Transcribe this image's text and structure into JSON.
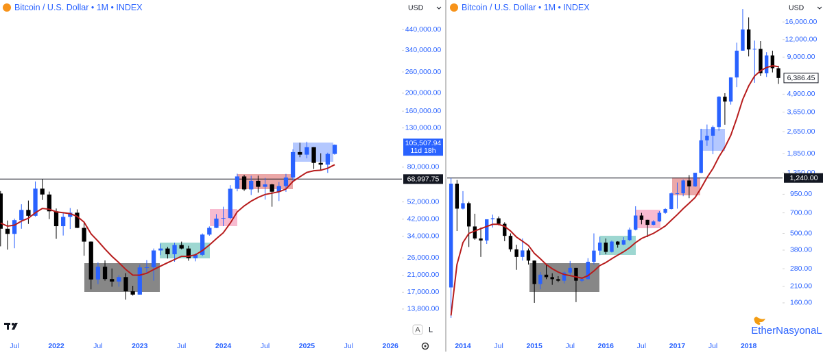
{
  "chart_data": [
    {
      "type": "candlestick",
      "title": "Bitcoin / U.S. Dollar • 1M • INDEX",
      "currency": "USD",
      "log_scale": true,
      "up_color": "#2962ff",
      "down_color": "#000000",
      "categories": [
        null,
        null,
        "Jul",
        null,
        null,
        null,
        null,
        null,
        "2022",
        null,
        null,
        null,
        null,
        null,
        "Jul",
        null,
        null,
        null,
        null,
        null,
        "2023",
        null,
        null,
        null,
        null,
        null,
        "Jul",
        null,
        null,
        null,
        null,
        null,
        "2024",
        null,
        null,
        null,
        null,
        null,
        "Jul",
        null,
        null,
        null,
        null,
        null,
        "2025",
        null,
        null,
        null,
        null,
        null,
        "Jul",
        null,
        null,
        null,
        null,
        null,
        "2026"
      ],
      "open": [
        57700,
        37300,
        35000,
        41500,
        47100,
        43800,
        61300,
        57000,
        46300,
        38500,
        43200,
        45500,
        37700,
        31800,
        19900,
        23300,
        20000,
        19400,
        20500,
        17200,
        16500,
        23100,
        23150,
        28500,
        29200,
        27200,
        30500,
        29200,
        25900,
        27000,
        34700,
        37700,
        42300,
        42600,
        61200,
        71300,
        60700,
        67500,
        62700,
        64600,
        59000,
        63300,
        70300,
        96400,
        93400,
        102400,
        84300,
        82500,
        94200,
        null,
        null,
        null,
        null,
        null,
        null,
        null,
        null
      ],
      "high": [
        59500,
        41300,
        42300,
        50500,
        52900,
        67000,
        69000,
        59100,
        47900,
        45800,
        48200,
        47400,
        40000,
        31900,
        24600,
        25200,
        22800,
        21000,
        21500,
        18400,
        23900,
        25300,
        29200,
        31000,
        29800,
        31400,
        31800,
        30200,
        27500,
        35200,
        38400,
        44700,
        49000,
        64000,
        73800,
        72800,
        71900,
        72000,
        70000,
        65100,
        66500,
        73600,
        99800,
        108300,
        109600,
        102500,
        95000,
        95700,
        106000,
        null,
        null,
        null,
        null,
        null,
        null,
        null,
        null
      ],
      "low": [
        30000,
        28800,
        29300,
        37300,
        39600,
        43300,
        53300,
        42000,
        32900,
        34300,
        37200,
        37600,
        26700,
        17600,
        18800,
        19600,
        18200,
        18200,
        15500,
        16300,
        16500,
        21400,
        19600,
        26900,
        25800,
        24800,
        28900,
        25100,
        24900,
        26600,
        34200,
        37600,
        38500,
        41900,
        59300,
        59600,
        56600,
        58400,
        53500,
        49000,
        52600,
        58900,
        66800,
        90500,
        89200,
        78200,
        76600,
        74500,
        93300,
        null,
        null,
        null,
        null,
        null,
        null,
        null,
        null
      ],
      "close": [
        37300,
        35000,
        41500,
        47100,
        43800,
        61300,
        57000,
        46300,
        38500,
        43200,
        45500,
        37700,
        31800,
        19900,
        23300,
        20000,
        19400,
        20500,
        17200,
        16500,
        23100,
        23150,
        28500,
        29200,
        27200,
        30500,
        29200,
        25900,
        27000,
        34700,
        37700,
        42300,
        42600,
        61200,
        71300,
        60700,
        67500,
        62700,
        64600,
        59000,
        63300,
        70300,
        96400,
        93400,
        102400,
        84300,
        82500,
        94200,
        105507.94,
        null,
        null,
        null,
        null,
        null,
        null,
        null,
        null
      ],
      "ma": {
        "color": "#b71c1c",
        "values": [
          40000,
          38500,
          39000,
          41000,
          42500,
          45500,
          48000,
          47500,
          46000,
          45500,
          45000,
          43500,
          40500,
          35000,
          32000,
          29000,
          26500,
          24500,
          22500,
          21000,
          21000,
          21500,
          22500,
          23500,
          24500,
          25500,
          26500,
          26500,
          27000,
          28500,
          30500,
          33000,
          35500,
          40000,
          46000,
          49500,
          52500,
          55000,
          57000,
          58000,
          59000,
          61000,
          67000,
          71000,
          75000,
          76500,
          77000,
          79000,
          82500,
          null,
          null,
          null,
          null,
          null,
          null,
          null,
          null
        ]
      },
      "ylim": [
        10600,
        634000
      ],
      "yticks": [
        {
          "value": 440000,
          "label": "440,000.00"
        },
        {
          "value": 340000,
          "label": "340,000.00"
        },
        {
          "value": 260000,
          "label": "260,000.00"
        },
        {
          "value": 200000,
          "label": "200,000.00"
        },
        {
          "value": 160000,
          "label": "160,000.00"
        },
        {
          "value": 130000,
          "label": "130,000.00"
        },
        {
          "value": 80000,
          "label": "80,000.00"
        },
        {
          "value": 52000,
          "label": "52,000.00"
        },
        {
          "value": 42000,
          "label": "42,000.00"
        },
        {
          "value": 34000,
          "label": "34,000.00"
        },
        {
          "value": 26000,
          "label": "26,000.00"
        },
        {
          "value": 21000,
          "label": "21,000.00"
        },
        {
          "value": 17000,
          "label": "17,000.00"
        },
        {
          "value": 13800,
          "label": "13,800.00"
        }
      ],
      "price_line": {
        "value": 68997.75,
        "label": "68,997.75"
      },
      "last_price": {
        "value": 105507.94,
        "label": "105,507.94"
      },
      "countdown": "11d 18h"
    },
    {
      "type": "candlestick",
      "title": "Bitcoin / U.S. Dollar • 1M • INDEX",
      "currency": "USD",
      "log_scale": true,
      "up_color": "#2962ff",
      "down_color": "#000000",
      "categories": [
        null,
        null,
        "2014",
        null,
        null,
        null,
        null,
        null,
        "Jul",
        null,
        null,
        null,
        null,
        null,
        "2015",
        null,
        null,
        null,
        null,
        null,
        "Jul",
        null,
        null,
        null,
        null,
        null,
        "2016",
        null,
        null,
        null,
        null,
        null,
        "Jul",
        null,
        null,
        null,
        null,
        null,
        "2017",
        null,
        null,
        null,
        null,
        null,
        "Jul",
        null,
        null,
        null,
        null,
        null,
        "2018",
        null,
        null,
        null,
        null,
        null
      ],
      "open": [
        206,
        1130,
        750,
        820,
        560,
        460,
        445,
        630,
        640,
        585,
        480,
        385,
        340,
        378,
        320,
        218,
        254,
        244,
        236,
        230,
        263,
        284,
        230,
        236,
        314,
        377,
        430,
        369,
        437,
        416,
        448,
        531,
        670,
        624,
        575,
        608,
        700,
        745,
        964,
        965,
        1190,
        1080,
        1350,
        2300,
        2480,
        2860,
        4700,
        4340,
        6450,
        10000,
        14150,
        10200,
        10300,
        6900,
        9250,
        7500
      ],
      "high": [
        1240,
        1200,
        1000,
        840,
        690,
        550,
        630,
        680,
        660,
        600,
        500,
        415,
        460,
        390,
        320,
        265,
        300,
        260,
        248,
        268,
        318,
        284,
        245,
        333,
        500,
        470,
        460,
        445,
        440,
        470,
        550,
        780,
        700,
        625,
        620,
        720,
        755,
        980,
        1150,
        1210,
        1300,
        1350,
        2780,
        2980,
        2930,
        4750,
        4980,
        6470,
        11400,
        19800,
        17250,
        11800,
        11700,
        9750,
        10000,
        7800
      ],
      "low": [
        125,
        520,
        740,
        400,
        450,
        340,
        420,
        550,
        570,
        440,
        370,
        275,
        320,
        300,
        160,
        200,
        236,
        215,
        225,
        220,
        250,
        162,
        225,
        235,
        300,
        350,
        355,
        365,
        395,
        412,
        440,
        525,
        580,
        470,
        570,
        605,
        690,
        740,
        750,
        920,
        890,
        1070,
        1340,
        2100,
        1830,
        2690,
        2970,
        4130,
        5500,
        10000,
        9100,
        5900,
        6600,
        6500,
        7000,
        5800
      ],
      "close": [
        1130,
        750,
        820,
        560,
        460,
        445,
        630,
        640,
        585,
        480,
        385,
        340,
        378,
        320,
        218,
        254,
        244,
        236,
        230,
        263,
        284,
        230,
        236,
        314,
        377,
        430,
        369,
        437,
        416,
        448,
        531,
        670,
        624,
        575,
        608,
        700,
        745,
        964,
        965,
        1190,
        1080,
        1350,
        2300,
        2480,
        2860,
        4700,
        4340,
        6450,
        10000,
        14150,
        10200,
        10300,
        6900,
        9250,
        7500,
        6386.45
      ],
      "ma": {
        "color": "#b71c1c",
        "values": [
          130,
          300,
          430,
          500,
          520,
          540,
          560,
          580,
          580,
          560,
          520,
          470,
          440,
          410,
          360,
          330,
          300,
          280,
          265,
          255,
          250,
          245,
          240,
          250,
          270,
          295,
          310,
          330,
          350,
          370,
          395,
          430,
          460,
          480,
          500,
          530,
          565,
          620,
          680,
          750,
          820,
          900,
          1050,
          1250,
          1450,
          1750,
          2050,
          2500,
          3300,
          4500,
          5600,
          6600,
          7200,
          7600,
          7800,
          7700
        ]
      },
      "ylim": [
        102,
        22950
      ],
      "yticks": [
        {
          "value": 16000,
          "label": "16,000.00"
        },
        {
          "value": 12000,
          "label": "12,000.00"
        },
        {
          "value": 9000,
          "label": "9,000.00"
        },
        {
          "value": 4900,
          "label": "4,900.00"
        },
        {
          "value": 3650,
          "label": "3,650.00"
        },
        {
          "value": 2650,
          "label": "2,650.00"
        },
        {
          "value": 1850,
          "label": "1,850.00"
        },
        {
          "value": 1350,
          "label": "1,350.00"
        },
        {
          "value": 950,
          "label": "950.00"
        },
        {
          "value": 700,
          "label": "700.00"
        },
        {
          "value": 500,
          "label": "500.00"
        },
        {
          "value": 380,
          "label": "380.00"
        },
        {
          "value": 280,
          "label": "280.00"
        },
        {
          "value": 210,
          "label": "210.00"
        },
        {
          "value": 160,
          "label": "160.00"
        }
      ],
      "price_line": {
        "value": 1240,
        "label": "1,240.00"
      },
      "last_price": {
        "value": 6386.45,
        "label": "6,386.45"
      }
    }
  ],
  "ui": {
    "scale_buttons": [
      "A",
      "L"
    ],
    "watermark": "EtherNasyonaL"
  }
}
